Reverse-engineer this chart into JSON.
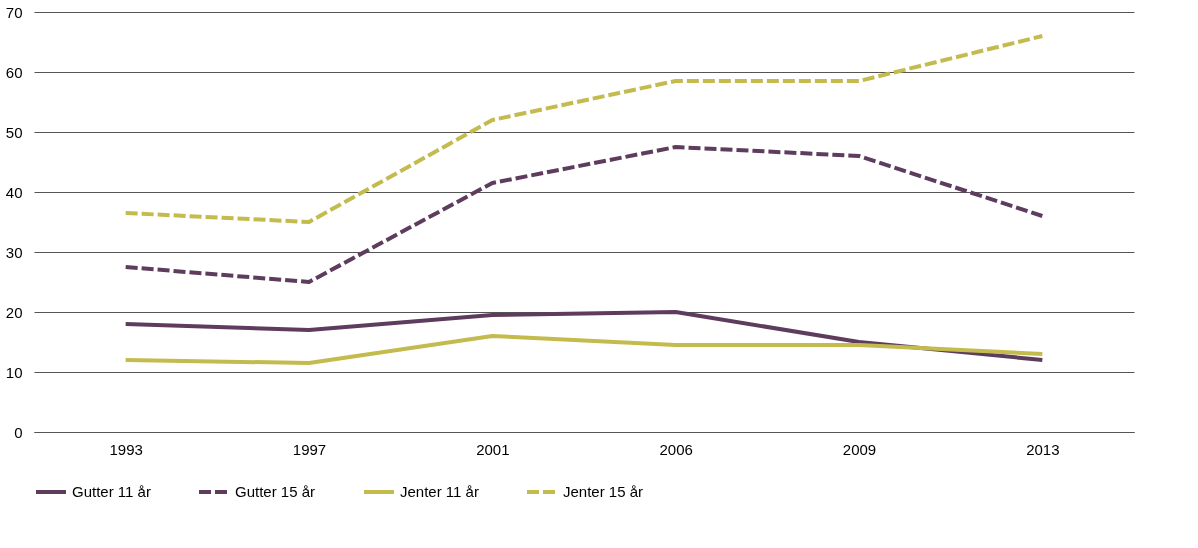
{
  "chart_data": {
    "type": "line",
    "categories": [
      "1993",
      "1997",
      "2001",
      "2006",
      "2009",
      "2013"
    ],
    "series": [
      {
        "name": "Gutter 11 år",
        "color": "#5e3c5e",
        "line_style": "solid",
        "values": [
          18,
          17,
          19.5,
          20,
          15,
          12
        ]
      },
      {
        "name": "Gutter 15 år",
        "color": "#5e3c5e",
        "line_style": "dashed",
        "values": [
          27.5,
          25,
          41.5,
          47.5,
          46,
          36
        ]
      },
      {
        "name": "Jenter 11 år",
        "color": "#c4bb4e",
        "line_style": "solid",
        "values": [
          12,
          11.5,
          16,
          14.5,
          14.5,
          13
        ]
      },
      {
        "name": "Jenter 15 år",
        "color": "#c4bb4e",
        "line_style": "dashed",
        "values": [
          36.5,
          35,
          52,
          58.5,
          58.5,
          66
        ]
      }
    ],
    "ylim": [
      0,
      70
    ],
    "yticks": [
      0,
      10,
      20,
      30,
      40,
      50,
      60,
      70
    ],
    "grid": "y",
    "legend": "bottom",
    "marker": "none"
  }
}
